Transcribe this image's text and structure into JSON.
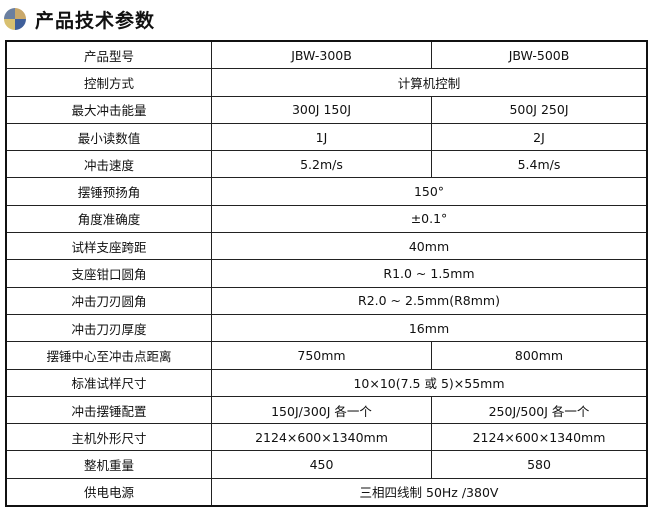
{
  "header": {
    "title": "产品技术参数",
    "icon": "quartered-circle-icon",
    "icon_colors": [
      "#6a7fa0",
      "#c9a86a",
      "#d8c070",
      "#3f5f9a"
    ]
  },
  "table": {
    "rows": [
      {
        "label": "产品型号",
        "values": [
          "JBW-300B",
          "JBW-500B"
        ]
      },
      {
        "label": "控制方式",
        "values": [
          "计算机控制"
        ]
      },
      {
        "label": "最大冲击能量",
        "values": [
          "300J 150J",
          "500J 250J"
        ]
      },
      {
        "label": "最小读数值",
        "values": [
          "1J",
          "2J"
        ]
      },
      {
        "label": "冲击速度",
        "values": [
          "5.2m/s",
          "5.4m/s"
        ]
      },
      {
        "label": "摆锤预扬角",
        "values": [
          "150°"
        ]
      },
      {
        "label": "角度准确度",
        "values": [
          "±0.1°"
        ]
      },
      {
        "label": "试样支座跨距",
        "values": [
          "40mm"
        ]
      },
      {
        "label": "支座钳口圆角",
        "values": [
          "R1.0 ~ 1.5mm"
        ]
      },
      {
        "label": "冲击刀刃圆角",
        "values": [
          "R2.0 ~ 2.5mm(R8mm)"
        ]
      },
      {
        "label": "冲击刀刃厚度",
        "values": [
          "16mm"
        ]
      },
      {
        "label": "摆锤中心至冲击点距离",
        "values": [
          "750mm",
          "800mm"
        ]
      },
      {
        "label": "标准试样尺寸",
        "values": [
          "10×10(7.5 或 5)×55mm"
        ]
      },
      {
        "label": "冲击摆锤配置",
        "values": [
          "150J/300J 各一个",
          "250J/500J 各一个"
        ]
      },
      {
        "label": "主机外形尺寸",
        "values": [
          "2124×600×1340mm",
          "2124×600×1340mm"
        ]
      },
      {
        "label": "整机重量",
        "values": [
          "450",
          "580"
        ]
      },
      {
        "label": "供电电源",
        "values": [
          "三相四线制 50Hz /380V"
        ]
      }
    ]
  }
}
